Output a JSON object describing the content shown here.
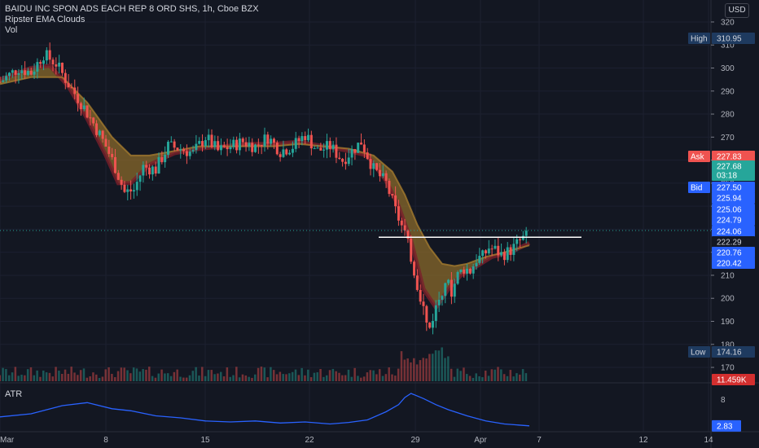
{
  "header": {
    "symbol_line": "BAIDU INC SPON ADS EACH REP 8 ORD SHS, 1h, Cboe BZX",
    "study_1": "Ripster EMA Clouds",
    "study_2": "Vol",
    "currency_button": "USD"
  },
  "atr_pane": {
    "label": "ATR"
  },
  "colors": {
    "background": "#131722",
    "up_candle": "#26a69a",
    "down_candle": "#ef5350",
    "pink_candle": "#f23b86",
    "cloud_brown": "#8a6a2b",
    "cloud_red": "#7a1f2a",
    "atr_line": "#2962ff",
    "resistance_line": "#ffffff"
  },
  "chart_data": {
    "type": "candlestick",
    "timeframe": "1h",
    "y_axis": {
      "ticks": [
        320,
        310,
        300,
        290,
        280,
        270,
        260,
        250,
        240,
        230,
        220,
        210,
        200,
        190,
        180,
        170
      ],
      "range": [
        164,
        326
      ]
    },
    "x_axis": {
      "labels": [
        "Mar",
        "8",
        "15",
        "22",
        "29",
        "Apr",
        "7",
        "12",
        "14"
      ]
    },
    "price_tags": [
      {
        "label": "High",
        "value": "310.95",
        "kind": "high"
      },
      {
        "label": "Ask",
        "value": "227.83",
        "kind": "ask"
      },
      {
        "label": "",
        "value": "227.68",
        "kind": "last"
      },
      {
        "label": "",
        "value": "03:18",
        "kind": "countdown"
      },
      {
        "label": "Bid",
        "value": "227.50",
        "kind": "bid"
      },
      {
        "label": "",
        "value": "225.94",
        "kind": "plain"
      },
      {
        "label": "",
        "value": "225.06",
        "kind": "plain"
      },
      {
        "label": "",
        "value": "224.79",
        "kind": "plain"
      },
      {
        "label": "",
        "value": "224.06",
        "kind": "plain"
      },
      {
        "label": "",
        "value": "222.29",
        "kind": "dark"
      },
      {
        "label": "",
        "value": "220.76",
        "kind": "blue"
      },
      {
        "label": "",
        "value": "220.42",
        "kind": "blue"
      },
      {
        "label": "Low",
        "value": "174.16",
        "kind": "low"
      },
      {
        "label": "",
        "value": "11.459K",
        "kind": "volume"
      }
    ],
    "price_path": [
      [
        0,
        294
      ],
      [
        6,
        300
      ],
      [
        10,
        298
      ],
      [
        14,
        306
      ],
      [
        18,
        302
      ],
      [
        22,
        293
      ],
      [
        26,
        285
      ],
      [
        30,
        276
      ],
      [
        34,
        266
      ],
      [
        37,
        257
      ],
      [
        40,
        246
      ],
      [
        43,
        247
      ],
      [
        46,
        257
      ],
      [
        50,
        256
      ],
      [
        54,
        266
      ],
      [
        58,
        265
      ],
      [
        62,
        263
      ],
      [
        66,
        270
      ],
      [
        70,
        264
      ],
      [
        74,
        266
      ],
      [
        78,
        268
      ],
      [
        82,
        266
      ],
      [
        86,
        270
      ],
      [
        90,
        264
      ],
      [
        94,
        266
      ],
      [
        98,
        271
      ],
      [
        102,
        264
      ],
      [
        106,
        266
      ],
      [
        110,
        260
      ],
      [
        113,
        264
      ],
      [
        116,
        268
      ],
      [
        120,
        256
      ],
      [
        124,
        250
      ],
      [
        127,
        238
      ],
      [
        130,
        228
      ],
      [
        132,
        218
      ],
      [
        134,
        206
      ],
      [
        136,
        196
      ],
      [
        137.5,
        185
      ],
      [
        139,
        192
      ],
      [
        141,
        200
      ],
      [
        143,
        208
      ],
      [
        145,
        203
      ],
      [
        147,
        210
      ],
      [
        149,
        213
      ],
      [
        151,
        212
      ],
      [
        153,
        217
      ],
      [
        155,
        218
      ],
      [
        157,
        222
      ],
      [
        159,
        221
      ],
      [
        161,
        219
      ],
      [
        163,
        220
      ],
      [
        165,
        222
      ],
      [
        167,
        225
      ],
      [
        170,
        227.68
      ]
    ],
    "ema_fast": [
      [
        0,
        295
      ],
      [
        10,
        300
      ],
      [
        16,
        301
      ],
      [
        22,
        292
      ],
      [
        28,
        278
      ],
      [
        34,
        262
      ],
      [
        38,
        250
      ],
      [
        42,
        250
      ],
      [
        48,
        258
      ],
      [
        56,
        263
      ],
      [
        64,
        265
      ],
      [
        72,
        266
      ],
      [
        80,
        267
      ],
      [
        88,
        267
      ],
      [
        96,
        268
      ],
      [
        104,
        266
      ],
      [
        112,
        264
      ],
      [
        118,
        262
      ],
      [
        124,
        251
      ],
      [
        128,
        240
      ],
      [
        132,
        225
      ],
      [
        136,
        204
      ],
      [
        140,
        196
      ],
      [
        144,
        204
      ],
      [
        148,
        210
      ],
      [
        152,
        213
      ],
      [
        158,
        218
      ],
      [
        164,
        220
      ],
      [
        170,
        224
      ]
    ],
    "ema_slow": [
      [
        0,
        293
      ],
      [
        10,
        296
      ],
      [
        20,
        296
      ],
      [
        28,
        285
      ],
      [
        36,
        270
      ],
      [
        42,
        262
      ],
      [
        48,
        262
      ],
      [
        56,
        264
      ],
      [
        64,
        266
      ],
      [
        72,
        266
      ],
      [
        80,
        266
      ],
      [
        88,
        266
      ],
      [
        96,
        267
      ],
      [
        104,
        266
      ],
      [
        112,
        265
      ],
      [
        120,
        262
      ],
      [
        126,
        255
      ],
      [
        130,
        245
      ],
      [
        134,
        232
      ],
      [
        138,
        222
      ],
      [
        142,
        215
      ],
      [
        146,
        214
      ],
      [
        150,
        215
      ],
      [
        156,
        218
      ],
      [
        162,
        220
      ],
      [
        170,
        223
      ]
    ],
    "resistance_level": 226.5,
    "last_price": 227.68,
    "atr_axis": {
      "ticks": [
        8
      ],
      "last_value": "2.83"
    },
    "atr": [
      [
        0,
        4.6
      ],
      [
        10,
        5.2
      ],
      [
        20,
        6.8
      ],
      [
        28,
        7.4
      ],
      [
        36,
        6.2
      ],
      [
        42,
        5.8
      ],
      [
        50,
        4.8
      ],
      [
        58,
        4.4
      ],
      [
        66,
        3.8
      ],
      [
        74,
        3.6
      ],
      [
        82,
        3.8
      ],
      [
        90,
        3.4
      ],
      [
        98,
        3.6
      ],
      [
        106,
        3.2
      ],
      [
        112,
        3.5
      ],
      [
        118,
        4.0
      ],
      [
        124,
        5.6
      ],
      [
        128,
        7.0
      ],
      [
        130,
        8.4
      ],
      [
        132,
        9.2
      ],
      [
        136,
        8.2
      ],
      [
        140,
        7.0
      ],
      [
        144,
        6.0
      ],
      [
        150,
        4.8
      ],
      [
        156,
        3.8
      ],
      [
        162,
        3.2
      ],
      [
        170,
        2.83
      ]
    ]
  }
}
